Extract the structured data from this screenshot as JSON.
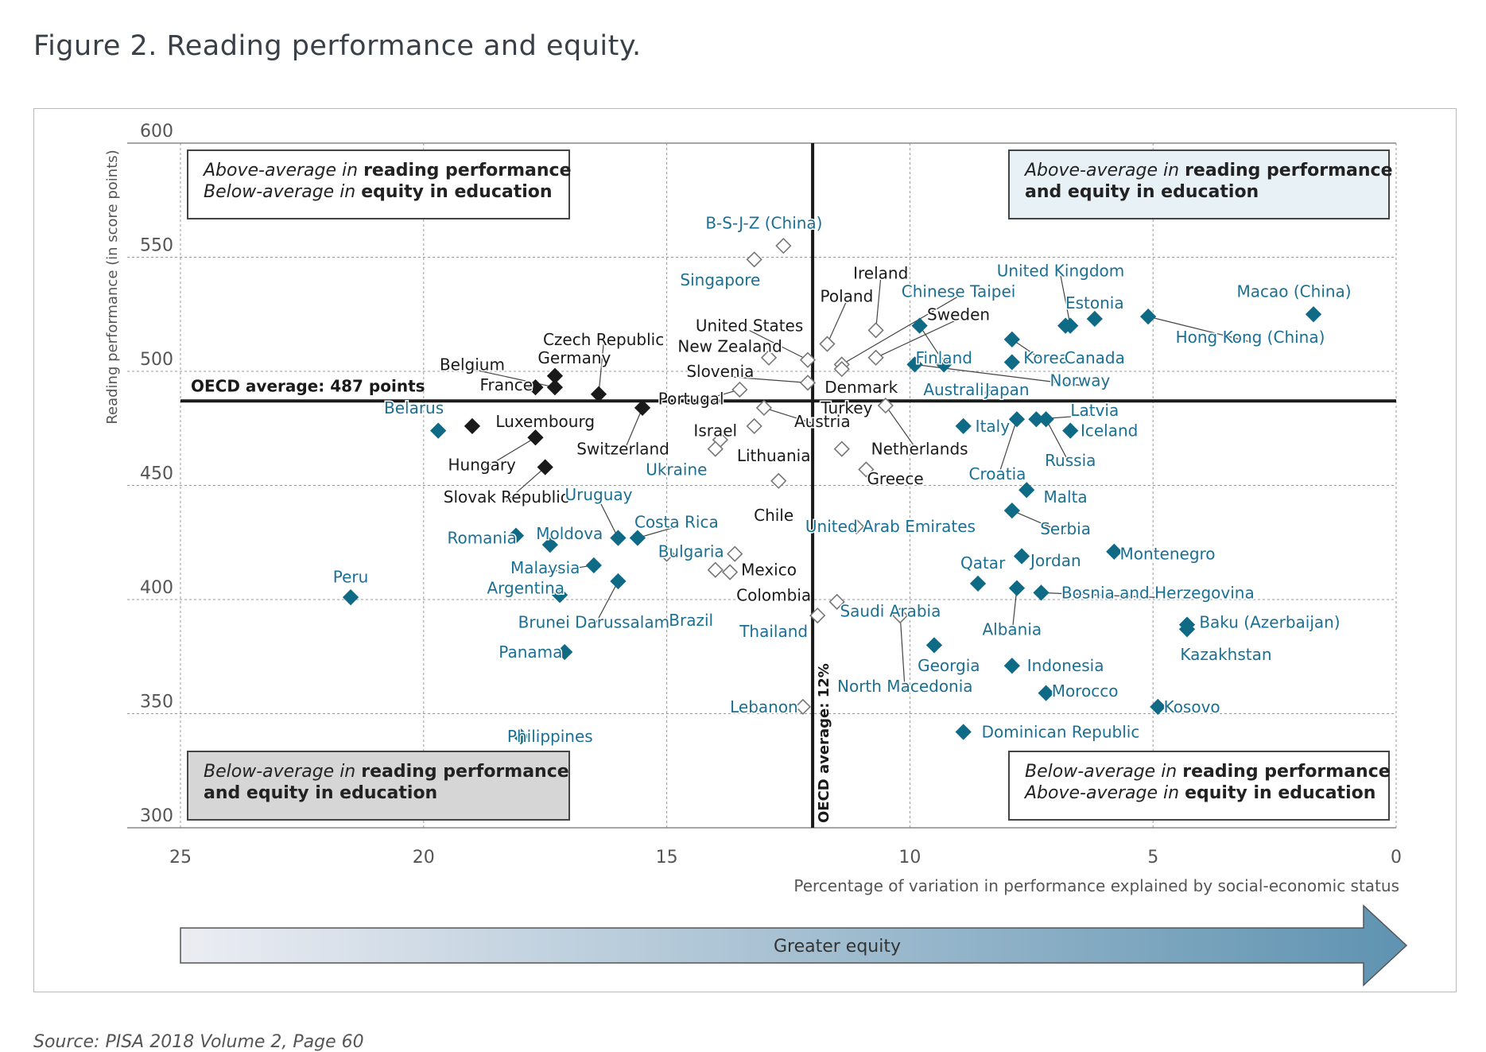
{
  "page": {
    "title": "Figure 2. Reading performance and equity.",
    "source": "Source: PISA 2018 Volume 2, Page 60"
  },
  "colors": {
    "filled_dark": "#1a1a1a",
    "filled_teal": "#0f6a86",
    "hollow": "#ffffff",
    "label_dark": "#1a1a1a",
    "label_teal": "#1b6f93",
    "box_top_right_fill": "#e7f1f6",
    "box_bottom_left_fill": "#d6d6d6"
  },
  "chart_data": {
    "type": "scatter",
    "xlabel": "Percentage of variation in performance explained by social-economic status",
    "ylabel": "Reading performance (in score points)",
    "xlim": [
      25,
      0
    ],
    "ylim": [
      300,
      600
    ],
    "x_reversed": true,
    "x_ticks": [
      25,
      20,
      15,
      10,
      5,
      0
    ],
    "y_ticks": [
      300,
      350,
      400,
      450,
      500,
      550,
      600
    ],
    "grid": true,
    "oecd_average_reading": 487,
    "oecd_average_equity": 12,
    "oecd_reading_label": "OECD average: 487 points",
    "oecd_equity_label": "OECD average: 12%",
    "quadrant_boxes": {
      "top_left": {
        "line1_italic": "Above-average in",
        "line1_bold": "reading performance",
        "line2_italic": "Below-average in",
        "line2_bold": "equity in education"
      },
      "top_right": {
        "line1_italic": "Above-average in",
        "line1_bold": "reading performance",
        "line2_bold": "and equity in education"
      },
      "bottom_left": {
        "line1_italic": "Below-average in",
        "line1_bold": "reading performance",
        "line2_bold": "and equity in education"
      },
      "bottom_right": {
        "line1_italic": "Below-average in",
        "line1_bold": "reading performance",
        "line2_italic": "Above-average in",
        "line2_bold": "equity in education"
      }
    },
    "equity_arrow_label": "Greater equity",
    "points": [
      {
        "name": "B-S-J-Z (China)",
        "x": 12.6,
        "y": 555,
        "style": "hollow",
        "lc": "teal",
        "lx": 13.0,
        "ly": 565,
        "a": "middle"
      },
      {
        "name": "Singapore",
        "x": 13.2,
        "y": 549,
        "style": "hollow",
        "lc": "teal",
        "lx": 13.9,
        "ly": 540,
        "a": "middle"
      },
      {
        "name": "Ireland",
        "x": 10.7,
        "y": 518,
        "style": "hollow",
        "lc": "dark",
        "lx": 10.6,
        "ly": 543,
        "a": "middle",
        "leader": true
      },
      {
        "name": "Poland",
        "x": 11.7,
        "y": 512,
        "style": "hollow",
        "lc": "dark",
        "lx": 11.3,
        "ly": 533,
        "a": "middle",
        "leader": true
      },
      {
        "name": "United States",
        "x": 12.1,
        "y": 505,
        "style": "hollow",
        "lc": "dark",
        "lx": 13.3,
        "ly": 520,
        "a": "middle",
        "leader": true
      },
      {
        "name": "Chinese Taipei",
        "x": 11.4,
        "y": 503,
        "style": "hollow",
        "lc": "teal",
        "lx": 9.0,
        "ly": 535,
        "a": "middle",
        "leader": true
      },
      {
        "name": "Sweden",
        "x": 10.7,
        "y": 506,
        "style": "hollow",
        "lc": "dark",
        "lx": 9.0,
        "ly": 525,
        "a": "middle",
        "leader": true
      },
      {
        "name": "New Zealand",
        "x": 12.9,
        "y": 506,
        "style": "hollow",
        "lc": "dark",
        "lx": 13.7,
        "ly": 511,
        "a": "middle"
      },
      {
        "name": "Slovenia",
        "x": 12.1,
        "y": 495,
        "style": "hollow",
        "lc": "dark",
        "lx": 13.9,
        "ly": 500,
        "a": "middle",
        "leader": true
      },
      {
        "name": "Portugal",
        "x": 13.5,
        "y": 492,
        "style": "hollow",
        "lc": "dark",
        "lx": 14.5,
        "ly": 488,
        "a": "middle",
        "leader": true
      },
      {
        "name": "Denmark",
        "x": 11.4,
        "y": 501,
        "style": "hollow",
        "lc": "dark",
        "lx": 11.0,
        "ly": 493,
        "a": "middle"
      },
      {
        "name": "Austria",
        "x": 13.0,
        "y": 484,
        "style": "hollow",
        "lc": "dark",
        "lx": 11.8,
        "ly": 478,
        "a": "middle",
        "leader": true
      },
      {
        "name": "Israel",
        "x": 13.9,
        "y": 470,
        "style": "hollow",
        "lc": "dark",
        "lx": 14.0,
        "ly": 474,
        "a": "middle"
      },
      {
        "name": "Ukraine",
        "x": 14.0,
        "y": 466,
        "style": "hollow",
        "lc": "teal",
        "lx": 14.8,
        "ly": 457,
        "a": "middle"
      },
      {
        "name": "Turkey",
        "x": 11.4,
        "y": 466,
        "style": "hollow",
        "lc": "dark",
        "lx": 11.3,
        "ly": 484,
        "a": "middle"
      },
      {
        "name": "Lithuania",
        "x": 13.2,
        "y": 476,
        "style": "hollow",
        "lc": "dark",
        "lx": 12.8,
        "ly": 463,
        "a": "middle"
      },
      {
        "name": "Netherlands",
        "x": 10.5,
        "y": 485,
        "style": "hollow",
        "lc": "dark",
        "lx": 9.8,
        "ly": 466,
        "a": "middle",
        "leader": true
      },
      {
        "name": "Greece",
        "x": 10.9,
        "y": 457,
        "style": "hollow",
        "lc": "dark",
        "lx": 10.3,
        "ly": 453,
        "a": "middle"
      },
      {
        "name": "Chile",
        "x": 12.7,
        "y": 452,
        "style": "hollow",
        "lc": "dark",
        "lx": 12.8,
        "ly": 437,
        "a": "middle"
      },
      {
        "name": "United Arab Emirates",
        "x": 11.1,
        "y": 432,
        "style": "hollow",
        "lc": "teal",
        "lx": 10.4,
        "ly": 432,
        "a": "middle"
      },
      {
        "name": "Bulgaria",
        "x": 15.0,
        "y": 420,
        "style": "hollow",
        "lc": "teal",
        "lx": 14.5,
        "ly": 421,
        "a": "middle"
      },
      {
        "name": "Mexico",
        "x": 13.6,
        "y": 420,
        "style": "hollow",
        "lc": "dark",
        "lx": 12.9,
        "ly": 413,
        "a": "middle"
      },
      {
        "name": "Colombia",
        "x": 13.7,
        "y": 412,
        "style": "hollow",
        "lc": "dark",
        "lx": 12.8,
        "ly": 402,
        "a": "middle"
      },
      {
        "name": "Brazil",
        "x": 14.0,
        "y": 413,
        "style": "hollow",
        "lc": "teal",
        "lx": 14.5,
        "ly": 391,
        "a": "middle"
      },
      {
        "name": "Saudi Arabia",
        "x": 11.5,
        "y": 399,
        "style": "hollow",
        "lc": "teal",
        "lx": 10.4,
        "ly": 395,
        "a": "middle"
      },
      {
        "name": "Thailand",
        "x": 11.9,
        "y": 393,
        "style": "hollow",
        "lc": "teal",
        "lx": 12.8,
        "ly": 386,
        "a": "middle"
      },
      {
        "name": "North Macedonia",
        "x": 10.2,
        "y": 393,
        "style": "hollow",
        "lc": "teal",
        "lx": 10.1,
        "ly": 362,
        "a": "middle",
        "leader": true
      },
      {
        "name": "Lebanon",
        "x": 12.2,
        "y": 353,
        "style": "hollow",
        "lc": "teal",
        "lx": 13.0,
        "ly": 353,
        "a": "middle"
      },
      {
        "name": "Belgium",
        "x": 17.3,
        "y": 493,
        "style": "filled",
        "lc": "dark",
        "lx": 19.0,
        "ly": 503,
        "a": "middle",
        "leader": true
      },
      {
        "name": "Czech Republic",
        "x": 16.4,
        "y": 490,
        "style": "filled",
        "lc": "dark",
        "lx": 16.3,
        "ly": 514,
        "a": "middle",
        "leader": true
      },
      {
        "name": "Germany",
        "x": 17.3,
        "y": 498,
        "style": "filled",
        "lc": "dark",
        "lx": 16.9,
        "ly": 506,
        "a": "middle"
      },
      {
        "name": "France",
        "x": 17.7,
        "y": 493,
        "style": "filled",
        "lc": "dark",
        "lx": 18.3,
        "ly": 494,
        "a": "middle"
      },
      {
        "name": "Switzerland",
        "x": 15.5,
        "y": 484,
        "style": "filled",
        "lc": "dark",
        "lx": 15.9,
        "ly": 466,
        "a": "middle",
        "leader": true
      },
      {
        "name": "Belarus",
        "x": 19.7,
        "y": 474,
        "style": "filled",
        "lc": "teal",
        "lx": 20.2,
        "ly": 484,
        "a": "middle"
      },
      {
        "name": "Luxembourg",
        "x": 19.0,
        "y": 476,
        "style": "filled",
        "lc": "dark",
        "lx": 17.5,
        "ly": 478,
        "a": "middle"
      },
      {
        "name": "Hungary",
        "x": 17.7,
        "y": 471,
        "style": "filled",
        "lc": "dark",
        "lx": 18.8,
        "ly": 459,
        "a": "middle",
        "leader": true
      },
      {
        "name": "Slovak Republic",
        "x": 17.5,
        "y": 458,
        "style": "filled",
        "lc": "dark",
        "lx": 18.3,
        "ly": 445,
        "a": "middle",
        "leader": true
      },
      {
        "name": "Uruguay",
        "x": 16.0,
        "y": 427,
        "style": "filled",
        "lc": "teal",
        "lx": 16.4,
        "ly": 446,
        "a": "middle",
        "leader": true
      },
      {
        "name": "Costa Rica",
        "x": 15.6,
        "y": 427,
        "style": "filled",
        "lc": "teal",
        "lx": 14.8,
        "ly": 434,
        "a": "middle",
        "leader": true
      },
      {
        "name": "Moldova",
        "x": 17.4,
        "y": 424,
        "style": "filled",
        "lc": "teal",
        "lx": 17.0,
        "ly": 429,
        "a": "middle"
      },
      {
        "name": "Romania",
        "x": 18.1,
        "y": 428,
        "style": "filled",
        "lc": "teal",
        "lx": 18.8,
        "ly": 427,
        "a": "middle"
      },
      {
        "name": "Malaysia",
        "x": 16.5,
        "y": 415,
        "style": "filled",
        "lc": "teal",
        "lx": 17.5,
        "ly": 414,
        "a": "middle",
        "leader": true
      },
      {
        "name": "Argentina",
        "x": 17.2,
        "y": 402,
        "style": "filled",
        "lc": "teal",
        "lx": 17.9,
        "ly": 405,
        "a": "middle"
      },
      {
        "name": "Brunei Darussalam",
        "x": 16.0,
        "y": 408,
        "style": "filled",
        "lc": "teal",
        "lx": 16.5,
        "ly": 390,
        "a": "middle",
        "leader": true
      },
      {
        "name": "Peru",
        "x": 21.5,
        "y": 401,
        "style": "filled",
        "lc": "teal",
        "lx": 21.5,
        "ly": 410,
        "a": "middle"
      },
      {
        "name": "Panama",
        "x": 17.1,
        "y": 377,
        "style": "filled",
        "lc": "teal",
        "lx": 17.8,
        "ly": 377,
        "a": "middle"
      },
      {
        "name": "Philippines",
        "x": 18.0,
        "y": 340,
        "style": "filled",
        "lc": "teal",
        "lx": 17.4,
        "ly": 340,
        "a": "middle"
      },
      {
        "name": "Finland",
        "x": 9.8,
        "y": 520,
        "style": "filled",
        "lc": "teal",
        "lx": 9.3,
        "ly": 506,
        "a": "middle",
        "leader": true
      },
      {
        "name": "Australia",
        "x": 9.3,
        "y": 503,
        "style": "filled",
        "lc": "teal",
        "lx": 9.0,
        "ly": 492,
        "a": "middle"
      },
      {
        "name": "Japan",
        "x": 7.9,
        "y": 504,
        "style": "filled",
        "lc": "teal",
        "lx": 8.0,
        "ly": 492,
        "a": "middle"
      },
      {
        "name": "Korea",
        "x": 7.9,
        "y": 514,
        "style": "filled",
        "lc": "teal",
        "lx": 7.2,
        "ly": 506,
        "a": "middle",
        "leader": true
      },
      {
        "name": "Estonia",
        "x": 6.2,
        "y": 523,
        "style": "filled",
        "lc": "teal",
        "lx": 6.2,
        "ly": 530,
        "a": "middle"
      },
      {
        "name": "United Kingdom",
        "x": 6.7,
        "y": 520,
        "style": "filled",
        "lc": "teal",
        "lx": 6.9,
        "ly": 544,
        "a": "middle",
        "leader": true
      },
      {
        "name": "Canada",
        "x": 6.8,
        "y": 520,
        "style": "filled",
        "lc": "teal",
        "lx": 6.2,
        "ly": 506,
        "a": "middle"
      },
      {
        "name": "Norway",
        "x": 9.9,
        "y": 503,
        "style": "filled",
        "lc": "teal",
        "lx": 6.5,
        "ly": 496,
        "a": "middle",
        "leader": true
      },
      {
        "name": "Macao (China)",
        "x": 1.7,
        "y": 525,
        "style": "filled",
        "lc": "teal",
        "lx": 2.1,
        "ly": 535,
        "a": "middle"
      },
      {
        "name": "Hong Kong (China)",
        "x": 5.1,
        "y": 524,
        "style": "filled",
        "lc": "teal",
        "lx": 3.0,
        "ly": 515,
        "a": "middle",
        "leader": true
      },
      {
        "name": "Italy",
        "x": 8.9,
        "y": 476,
        "style": "filled",
        "lc": "teal",
        "lx": 8.3,
        "ly": 476,
        "a": "middle"
      },
      {
        "name": "Latvia",
        "x": 7.4,
        "y": 479,
        "style": "filled",
        "lc": "teal",
        "lx": 6.2,
        "ly": 483,
        "a": "middle",
        "leader": true
      },
      {
        "name": "Croatia",
        "x": 7.8,
        "y": 479,
        "style": "filled",
        "lc": "teal",
        "lx": 8.2,
        "ly": 455,
        "a": "middle",
        "leader": true
      },
      {
        "name": "Russia",
        "x": 7.2,
        "y": 479,
        "style": "filled",
        "lc": "teal",
        "lx": 6.7,
        "ly": 461,
        "a": "middle",
        "leader": true
      },
      {
        "name": "Iceland",
        "x": 6.7,
        "y": 474,
        "style": "filled",
        "lc": "teal",
        "lx": 5.9,
        "ly": 474,
        "a": "middle"
      },
      {
        "name": "Malta",
        "x": 7.6,
        "y": 448,
        "style": "filled",
        "lc": "teal",
        "lx": 6.8,
        "ly": 445,
        "a": "middle"
      },
      {
        "name": "Serbia",
        "x": 7.9,
        "y": 439,
        "style": "filled",
        "lc": "teal",
        "lx": 6.8,
        "ly": 431,
        "a": "middle",
        "leader": true
      },
      {
        "name": "Jordan",
        "x": 7.7,
        "y": 419,
        "style": "filled",
        "lc": "teal",
        "lx": 7.0,
        "ly": 417,
        "a": "middle"
      },
      {
        "name": "Qatar",
        "x": 8.6,
        "y": 407,
        "style": "filled",
        "lc": "teal",
        "lx": 8.5,
        "ly": 416,
        "a": "middle"
      },
      {
        "name": "Montenegro",
        "x": 5.8,
        "y": 421,
        "style": "filled",
        "lc": "teal",
        "lx": 4.7,
        "ly": 420,
        "a": "middle"
      },
      {
        "name": "Albania",
        "x": 7.8,
        "y": 405,
        "style": "filled",
        "lc": "teal",
        "lx": 7.9,
        "ly": 387,
        "a": "middle",
        "leader": true
      },
      {
        "name": "Bosnia and Herzegovina",
        "x": 7.3,
        "y": 403,
        "style": "filled",
        "lc": "teal",
        "lx": 4.9,
        "ly": 403,
        "a": "middle",
        "leader": true
      },
      {
        "name": "Baku (Azerbaijan)",
        "x": 4.3,
        "y": 389,
        "style": "filled",
        "lc": "teal",
        "lx": 2.6,
        "ly": 390,
        "a": "middle"
      },
      {
        "name": "Kazakhstan",
        "x": 4.3,
        "y": 387,
        "style": "filled",
        "lc": "teal",
        "lx": 3.5,
        "ly": 376,
        "a": "middle"
      },
      {
        "name": "Georgia",
        "x": 9.5,
        "y": 380,
        "style": "filled",
        "lc": "teal",
        "lx": 9.2,
        "ly": 371,
        "a": "middle"
      },
      {
        "name": "Indonesia",
        "x": 7.9,
        "y": 371,
        "style": "filled",
        "lc": "teal",
        "lx": 6.8,
        "ly": 371,
        "a": "middle"
      },
      {
        "name": "Morocco",
        "x": 7.2,
        "y": 359,
        "style": "filled",
        "lc": "teal",
        "lx": 6.4,
        "ly": 360,
        "a": "middle"
      },
      {
        "name": "Kosovo",
        "x": 4.9,
        "y": 353,
        "style": "filled",
        "lc": "teal",
        "lx": 4.2,
        "ly": 353,
        "a": "middle"
      },
      {
        "name": "Dominican Republic",
        "x": 8.9,
        "y": 342,
        "style": "filled",
        "lc": "teal",
        "lx": 6.9,
        "ly": 342,
        "a": "middle"
      }
    ]
  }
}
